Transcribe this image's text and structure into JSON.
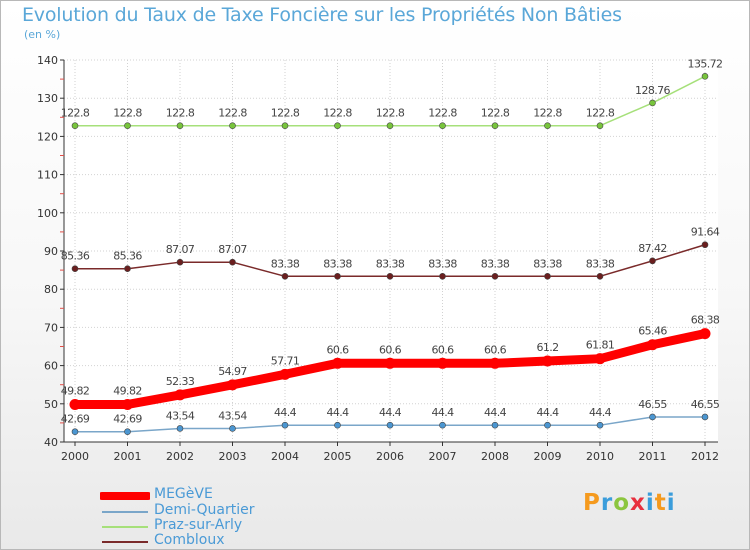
{
  "title": "Evolution du Taux de Taxe Foncière sur les Propriétés Non Bâties",
  "subtitle": "(en %)",
  "logo": "Proxiti",
  "chart_data": {
    "type": "line",
    "title": "Evolution du Taux de Taxe Foncière sur les Propriétés Non Bâties",
    "ylabel": "(en %)",
    "xlabel": "",
    "categories": [
      "2000",
      "2001",
      "2002",
      "2003",
      "2004",
      "2005",
      "2006",
      "2007",
      "2008",
      "2009",
      "2010",
      "2011",
      "2012"
    ],
    "ylim": [
      40,
      140
    ],
    "yticks": [
      40,
      50,
      60,
      70,
      80,
      90,
      100,
      110,
      120,
      130,
      140
    ],
    "grid": true,
    "series": [
      {
        "name": "MEGèVE",
        "color": "#ff0000",
        "marker": "#ff0000",
        "emphasis": true,
        "values": [
          49.82,
          49.82,
          52.33,
          54.97,
          57.71,
          60.6,
          60.6,
          60.6,
          60.6,
          61.2,
          61.81,
          65.46,
          68.38
        ],
        "labels": [
          "49.82",
          "49.82",
          "52.33",
          "54.97",
          "57.71",
          "60.6",
          "60.6",
          "60.6",
          "60.6",
          "61.2",
          "61.81",
          "65.46",
          "68.38"
        ]
      },
      {
        "name": "Demi-Quartier",
        "color": "#7aa6c9",
        "marker": "#4b96d1",
        "emphasis": false,
        "values": [
          42.69,
          42.69,
          43.54,
          43.54,
          44.4,
          44.4,
          44.4,
          44.4,
          44.4,
          44.4,
          44.4,
          46.55,
          46.55
        ],
        "labels": [
          "42.69",
          "42.69",
          "43.54",
          "43.54",
          "44.4",
          "44.4",
          "44.4",
          "44.4",
          "44.4",
          "44.4",
          "44.4",
          "46.55",
          "46.55"
        ]
      },
      {
        "name": "Praz-sur-Arly",
        "color": "#a6e07a",
        "marker": "#78c43c",
        "emphasis": false,
        "values": [
          122.8,
          122.8,
          122.8,
          122.8,
          122.8,
          122.8,
          122.8,
          122.8,
          122.8,
          122.8,
          122.8,
          128.76,
          135.72
        ],
        "labels": [
          "122.8",
          "122.8",
          "122.8",
          "122.8",
          "122.8",
          "122.8",
          "122.8",
          "122.8",
          "122.8",
          "122.8",
          "122.8",
          "128.76",
          "135.72"
        ]
      },
      {
        "name": "Combloux",
        "color": "#7a2a2a",
        "marker": "#6b1f1f",
        "emphasis": false,
        "values": [
          85.36,
          85.36,
          87.07,
          87.07,
          83.38,
          83.38,
          83.38,
          83.38,
          83.38,
          83.38,
          83.38,
          87.42,
          91.64
        ],
        "labels": [
          "85.36",
          "85.36",
          "87.07",
          "87.07",
          "83.38",
          "83.38",
          "83.38",
          "83.38",
          "83.38",
          "83.38",
          "83.38",
          "87.42",
          "91.64"
        ]
      }
    ],
    "legend": [
      "MEGèVE",
      "Demi-Quartier",
      "Praz-sur-Arly",
      "Combloux"
    ]
  }
}
